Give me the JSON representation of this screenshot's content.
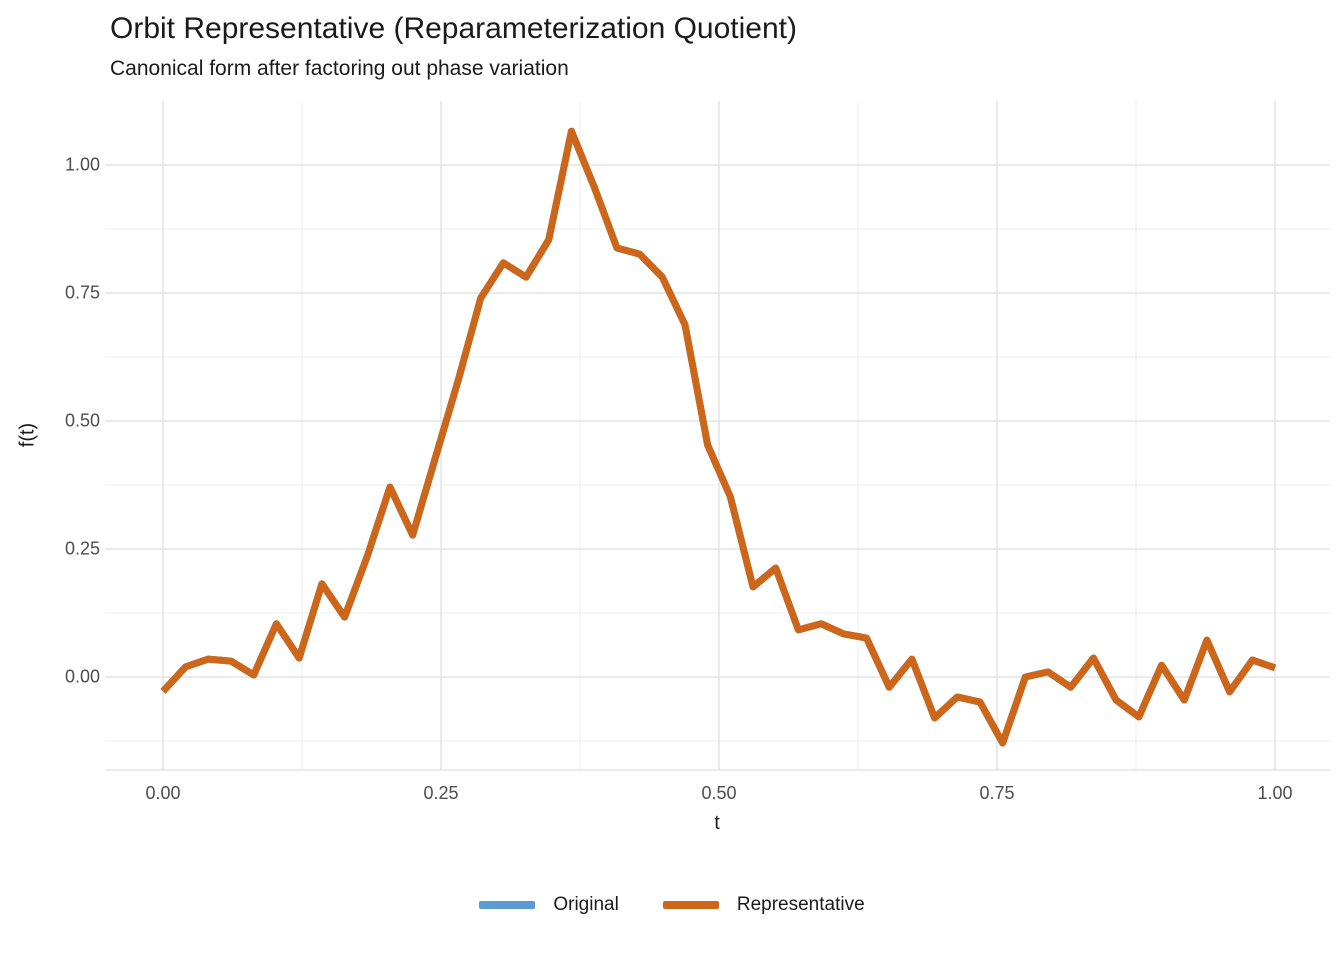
{
  "chart_data": {
    "type": "line",
    "title": "Orbit Representative (Reparameterization Quotient)",
    "subtitle": "Canonical form after factoring out phase variation",
    "xlabel": "t",
    "ylabel": "f(t)",
    "grid": "on",
    "xlim": [
      -0.052,
      1.049
    ],
    "ylim": [
      -0.185,
      1.124
    ],
    "x_axis": {
      "ticks": [
        {
          "value": 0.0,
          "label": "0.00"
        },
        {
          "value": 0.25,
          "label": "0.25"
        },
        {
          "value": 0.5,
          "label": "0.50"
        },
        {
          "value": 0.75,
          "label": "0.75"
        },
        {
          "value": 1.0,
          "label": "1.00"
        }
      ],
      "minor_ticks": [
        0.125,
        0.375,
        0.625,
        0.875
      ]
    },
    "y_axis": {
      "ticks": [
        {
          "value": 0.0,
          "label": "0.00"
        },
        {
          "value": 0.25,
          "label": "0.25"
        },
        {
          "value": 0.5,
          "label": "0.50"
        },
        {
          "value": 0.75,
          "label": "0.75"
        },
        {
          "value": 1.0,
          "label": "1.00"
        }
      ],
      "minor_ticks": [
        -0.125,
        0.125,
        0.375,
        0.625,
        0.875
      ]
    },
    "x": [
      0.0,
      0.0204,
      0.0408,
      0.0612,
      0.0816,
      0.102,
      0.1224,
      0.1429,
      0.1633,
      0.1837,
      0.2041,
      0.2245,
      0.2449,
      0.2653,
      0.2857,
      0.3061,
      0.3265,
      0.3469,
      0.3673,
      0.3878,
      0.4082,
      0.4286,
      0.449,
      0.4694,
      0.4898,
      0.5102,
      0.5306,
      0.551,
      0.5714,
      0.5918,
      0.6122,
      0.6327,
      0.6531,
      0.6735,
      0.6939,
      0.7143,
      0.7347,
      0.7551,
      0.7755,
      0.7959,
      0.8163,
      0.8367,
      0.8571,
      0.8776,
      0.898,
      0.9184,
      0.9388,
      0.9592,
      0.9796,
      1.0
    ],
    "series": [
      {
        "name": "Original",
        "color": "#5B9BD5",
        "values": [
          -0.028,
          0.02,
          0.035,
          0.031,
          0.004,
          0.104,
          0.037,
          0.182,
          0.117,
          0.236,
          0.371,
          0.277,
          0.428,
          0.578,
          0.74,
          0.809,
          0.781,
          0.854,
          1.066,
          0.957,
          0.838,
          0.826,
          0.781,
          0.688,
          0.453,
          0.352,
          0.176,
          0.213,
          0.092,
          0.104,
          0.084,
          0.076,
          -0.02,
          0.035,
          -0.08,
          -0.039,
          -0.049,
          -0.129,
          0.0,
          0.01,
          -0.02,
          0.037,
          -0.045,
          -0.078,
          0.023,
          -0.045,
          0.072,
          -0.029,
          0.033,
          0.018
        ]
      },
      {
        "name": "Representative",
        "color": "#CE661A",
        "values": [
          -0.028,
          0.02,
          0.035,
          0.031,
          0.004,
          0.104,
          0.037,
          0.182,
          0.117,
          0.236,
          0.371,
          0.277,
          0.428,
          0.578,
          0.74,
          0.809,
          0.781,
          0.854,
          1.066,
          0.957,
          0.838,
          0.826,
          0.781,
          0.688,
          0.453,
          0.352,
          0.176,
          0.213,
          0.092,
          0.104,
          0.084,
          0.076,
          -0.02,
          0.035,
          -0.08,
          -0.039,
          -0.049,
          -0.129,
          0.0,
          0.01,
          -0.02,
          0.037,
          -0.045,
          -0.078,
          0.023,
          -0.045,
          0.072,
          -0.029,
          0.033,
          0.018
        ]
      }
    ],
    "legend": {
      "position": "bottom",
      "entries": [
        {
          "label": "Original",
          "color": "#5B9BD5"
        },
        {
          "label": "Representative",
          "color": "#CE661A"
        }
      ]
    },
    "colors": {
      "grid_major": "#E4E4E4",
      "grid_minor": "#F0F0F0",
      "axis_line": "#E4E4E4",
      "tick_text": "#4D4D4D",
      "text": "#1A1A1A",
      "background": "#FFFFFF"
    }
  }
}
